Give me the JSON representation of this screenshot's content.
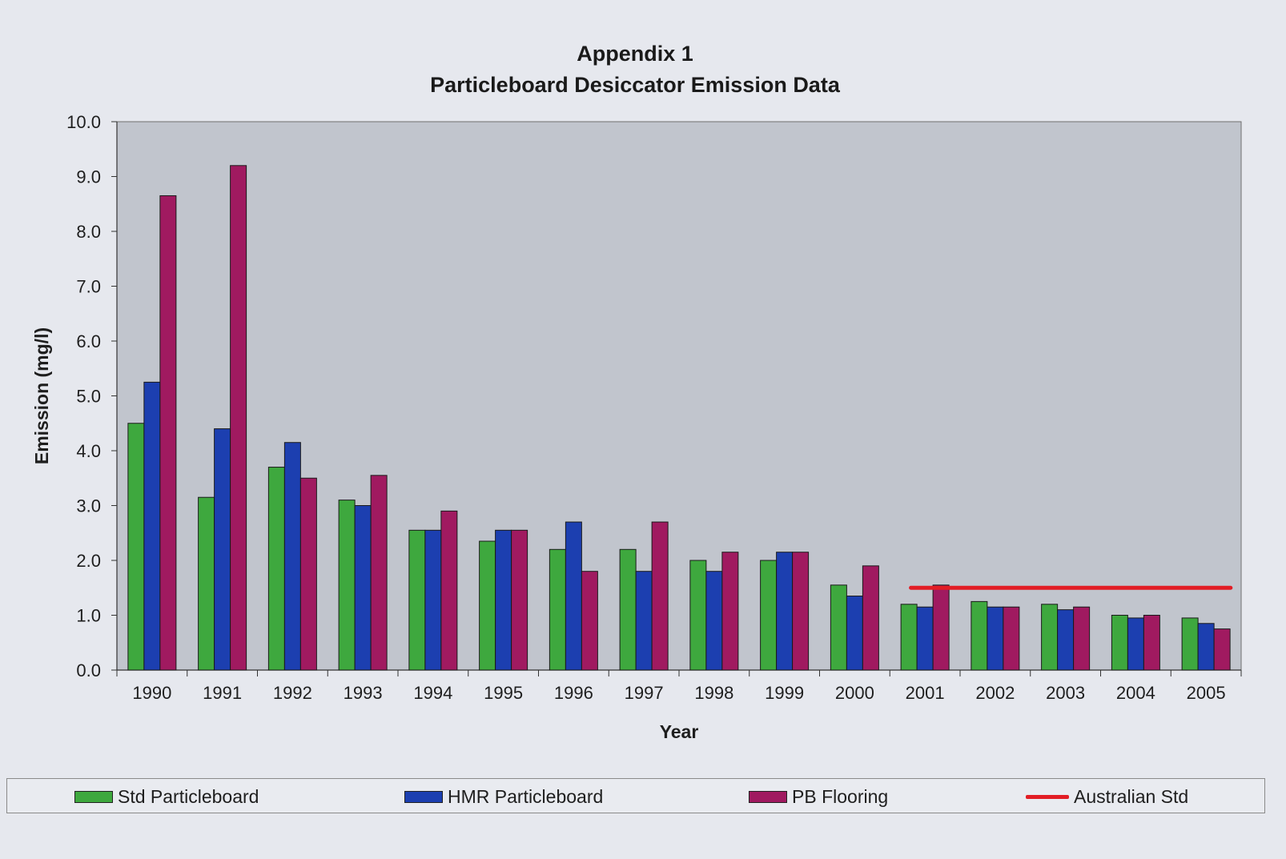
{
  "chart_data": {
    "type": "bar",
    "title": "Appendix 1",
    "subtitle": "Particleboard Desiccator Emission Data",
    "xlabel": "Year",
    "ylabel": "Emission (mg/l)",
    "ylim": [
      0,
      10
    ],
    "yticks": [
      "0.0",
      "1.0",
      "2.0",
      "3.0",
      "4.0",
      "5.0",
      "6.0",
      "7.0",
      "8.0",
      "9.0",
      "10.0"
    ],
    "grid": false,
    "legend_position": "bottom",
    "categories": [
      "1990",
      "1991",
      "1992",
      "1993",
      "1994",
      "1995",
      "1996",
      "1997",
      "1998",
      "1999",
      "2000",
      "2001",
      "2002",
      "2003",
      "2004",
      "2005"
    ],
    "series": [
      {
        "name": "Std Particleboard",
        "color": "#3ea83e",
        "values": [
          4.5,
          3.15,
          3.7,
          3.1,
          2.55,
          2.35,
          2.2,
          2.2,
          2.0,
          2.0,
          1.55,
          1.2,
          1.25,
          1.2,
          1.0,
          0.95
        ]
      },
      {
        "name": "HMR Particleboard",
        "color": "#1c3fb0",
        "values": [
          5.25,
          4.4,
          4.15,
          3.0,
          2.55,
          2.55,
          2.7,
          1.8,
          1.8,
          2.15,
          1.35,
          1.15,
          1.15,
          1.1,
          0.95,
          0.85
        ]
      },
      {
        "name": "PB Flooring",
        "color": "#a01a60",
        "values": [
          8.65,
          9.2,
          3.5,
          3.55,
          2.9,
          2.55,
          1.8,
          2.7,
          2.15,
          2.15,
          1.9,
          1.55,
          1.15,
          1.15,
          1.0,
          0.75
        ]
      }
    ],
    "line": {
      "name": "Australian Std",
      "color": "#e21d25",
      "value": 1.5,
      "from": "2001",
      "to": "2005"
    },
    "plot_background": "#c1c5cd"
  }
}
